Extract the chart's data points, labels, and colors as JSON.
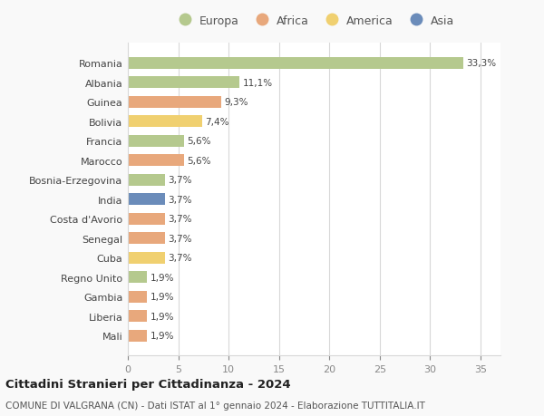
{
  "countries": [
    "Romania",
    "Albania",
    "Guinea",
    "Bolivia",
    "Francia",
    "Marocco",
    "Bosnia-Erzegovina",
    "India",
    "Costa d'Avorio",
    "Senegal",
    "Cuba",
    "Regno Unito",
    "Gambia",
    "Liberia",
    "Mali"
  ],
  "values": [
    33.3,
    11.1,
    9.3,
    7.4,
    5.6,
    5.6,
    3.7,
    3.7,
    3.7,
    3.7,
    3.7,
    1.9,
    1.9,
    1.9,
    1.9
  ],
  "labels": [
    "33,3%",
    "11,1%",
    "9,3%",
    "7,4%",
    "5,6%",
    "5,6%",
    "3,7%",
    "3,7%",
    "3,7%",
    "3,7%",
    "3,7%",
    "1,9%",
    "1,9%",
    "1,9%",
    "1,9%"
  ],
  "colors": [
    "#b5c98e",
    "#b5c98e",
    "#e8a87c",
    "#f0d070",
    "#b5c98e",
    "#e8a87c",
    "#b5c98e",
    "#6b8cba",
    "#e8a87c",
    "#e8a87c",
    "#f0d070",
    "#b5c98e",
    "#e8a87c",
    "#e8a87c",
    "#e8a87c"
  ],
  "legend_labels": [
    "Europa",
    "Africa",
    "America",
    "Asia"
  ],
  "legend_colors": [
    "#b5c98e",
    "#e8a87c",
    "#f0d070",
    "#6b8cba"
  ],
  "title": "Cittadini Stranieri per Cittadinanza - 2024",
  "subtitle": "COMUNE DI VALGRANA (CN) - Dati ISTAT al 1° gennaio 2024 - Elaborazione TUTTITALIA.IT",
  "xlim": [
    0,
    37
  ],
  "xticks": [
    0,
    5,
    10,
    15,
    20,
    25,
    30,
    35
  ],
  "background_color": "#f9f9f9",
  "bar_background": "#ffffff",
  "grid_color": "#d8d8d8"
}
